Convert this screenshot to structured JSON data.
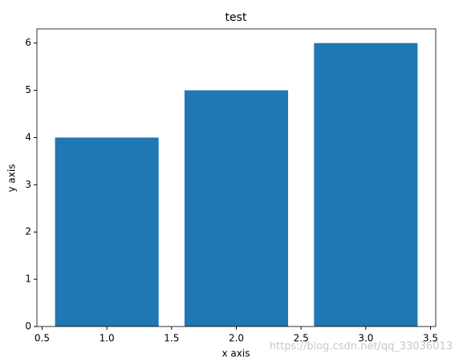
{
  "chart_data": {
    "type": "bar",
    "title": "test",
    "x_label": "x axis",
    "y_label": "y axis",
    "x": [
      1,
      2,
      3
    ],
    "values": [
      4,
      5,
      6
    ],
    "color": "#1f77b4",
    "bar_width": 0.8,
    "xlim": [
      0.46,
      3.54
    ],
    "xticks": [
      0.5,
      {
        "value": 1,
        "label": "1.0"
      },
      1.5,
      {
        "value": 2,
        "label": "2.0"
      },
      2.5,
      {
        "value": 3,
        "label": "3.0"
      },
      3.5
    ],
    "ylim": [
      0,
      6.3
    ],
    "yticks": [
      0,
      1,
      2,
      3,
      4,
      5,
      6
    ],
    "grid": false,
    "watermark": "https://blog.csdn.net/qq_33036013"
  }
}
